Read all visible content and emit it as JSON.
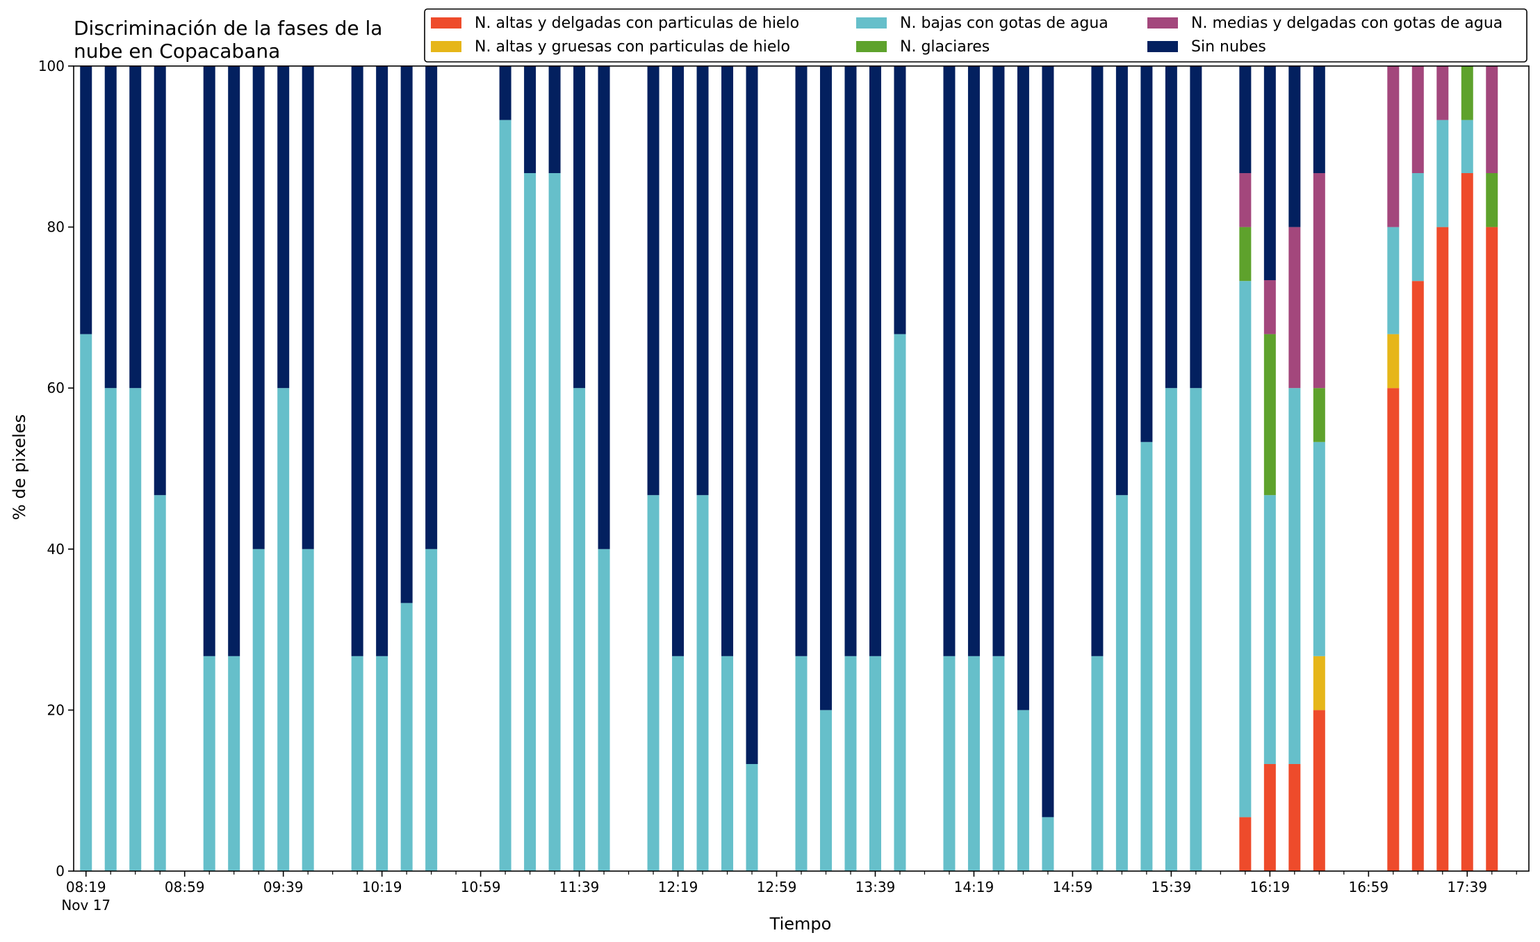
{
  "chart_data": {
    "type": "bar",
    "stacked": true,
    "title_lines": [
      "Discriminación de la fases de la",
      "nube en Copacabana"
    ],
    "xlabel": "Tiempo",
    "ylabel": "% de pixeles",
    "ylim": [
      0,
      100
    ],
    "yticks": [
      0,
      20,
      40,
      60,
      80,
      100
    ],
    "xlim_slots": [
      -0.5,
      58.5
    ],
    "x_tick_labels": [
      {
        "slot": 0,
        "label": "08:19"
      },
      {
        "slot": 4,
        "label": "08:59"
      },
      {
        "slot": 8,
        "label": "09:39"
      },
      {
        "slot": 12,
        "label": "10:19"
      },
      {
        "slot": 16,
        "label": "10:59"
      },
      {
        "slot": 20,
        "label": "11:39"
      },
      {
        "slot": 24,
        "label": "12:19"
      },
      {
        "slot": 28,
        "label": "12:59"
      },
      {
        "slot": 32,
        "label": "13:39"
      },
      {
        "slot": 36,
        "label": "14:19"
      },
      {
        "slot": 40,
        "label": "14:59"
      },
      {
        "slot": 44,
        "label": "15:39"
      },
      {
        "slot": 48,
        "label": "16:19"
      },
      {
        "slot": 52,
        "label": "16:59"
      },
      {
        "slot": 56,
        "label": "17:39"
      }
    ],
    "x_date_label": "Nov 17",
    "grid": false,
    "legend_position": "top-right",
    "series_order": [
      "altas_delgadas",
      "altas_gruesas",
      "bajas",
      "glaciares",
      "medias",
      "sin_nubes"
    ],
    "series": [
      {
        "key": "altas_delgadas",
        "name": "N. altas y delgadas con particulas de hielo",
        "color": "#ee4b2b"
      },
      {
        "key": "altas_gruesas",
        "name": "N. altas y gruesas con particulas de hielo",
        "color": "#e6b619"
      },
      {
        "key": "bajas",
        "name": "N. bajas con gotas de agua",
        "color": "#66bfca"
      },
      {
        "key": "glaciares",
        "name": "N. glaciares",
        "color": "#5ea22c"
      },
      {
        "key": "medias",
        "name": "N. medias y delgadas con gotas de agua",
        "color": "#a3477c"
      },
      {
        "key": "sin_nubes",
        "name": "Sin nubes",
        "color": "#03205f"
      }
    ],
    "bars": [
      {
        "slot": 0,
        "values": [
          0,
          0,
          66.7,
          0,
          0,
          33.3
        ]
      },
      {
        "slot": 1,
        "values": [
          0,
          0,
          60,
          0,
          0,
          40
        ]
      },
      {
        "slot": 2,
        "values": [
          0,
          0,
          60,
          0,
          0,
          40
        ]
      },
      {
        "slot": 3,
        "values": [
          0,
          0,
          46.7,
          0,
          0,
          53.3
        ]
      },
      {
        "slot": 5,
        "values": [
          0,
          0,
          26.7,
          0,
          0,
          73.3
        ]
      },
      {
        "slot": 6,
        "values": [
          0,
          0,
          26.7,
          0,
          0,
          73.3
        ]
      },
      {
        "slot": 7,
        "values": [
          0,
          0,
          40,
          0,
          0,
          60
        ]
      },
      {
        "slot": 8,
        "values": [
          0,
          0,
          60,
          0,
          0,
          40
        ]
      },
      {
        "slot": 9,
        "values": [
          0,
          0,
          40,
          0,
          0,
          60
        ]
      },
      {
        "slot": 11,
        "values": [
          0,
          0,
          26.7,
          0,
          0,
          73.3
        ]
      },
      {
        "slot": 12,
        "values": [
          0,
          0,
          26.7,
          0,
          0,
          73.3
        ]
      },
      {
        "slot": 13,
        "values": [
          0,
          0,
          33.3,
          0,
          0,
          66.7
        ]
      },
      {
        "slot": 14,
        "values": [
          0,
          0,
          40,
          0,
          0,
          60
        ]
      },
      {
        "slot": 17,
        "values": [
          0,
          0,
          93.3,
          0,
          0,
          6.7
        ]
      },
      {
        "slot": 18,
        "values": [
          0,
          0,
          86.7,
          0,
          0,
          13.3
        ]
      },
      {
        "slot": 19,
        "values": [
          0,
          0,
          86.7,
          0,
          0,
          13.3
        ]
      },
      {
        "slot": 20,
        "values": [
          0,
          0,
          60,
          0,
          0,
          40
        ]
      },
      {
        "slot": 21,
        "values": [
          0,
          0,
          40,
          0,
          0,
          60
        ]
      },
      {
        "slot": 23,
        "values": [
          0,
          0,
          46.7,
          0,
          0,
          53.3
        ]
      },
      {
        "slot": 24,
        "values": [
          0,
          0,
          26.7,
          0,
          0,
          73.3
        ]
      },
      {
        "slot": 25,
        "values": [
          0,
          0,
          46.7,
          0,
          0,
          53.3
        ]
      },
      {
        "slot": 26,
        "values": [
          0,
          0,
          26.7,
          0,
          0,
          73.3
        ]
      },
      {
        "slot": 27,
        "values": [
          0,
          0,
          13.3,
          0,
          0,
          86.7
        ]
      },
      {
        "slot": 29,
        "values": [
          0,
          0,
          26.7,
          0,
          0,
          73.3
        ]
      },
      {
        "slot": 30,
        "values": [
          0,
          0,
          20,
          0,
          0,
          80
        ]
      },
      {
        "slot": 31,
        "values": [
          0,
          0,
          26.7,
          0,
          0,
          73.3
        ]
      },
      {
        "slot": 32,
        "values": [
          0,
          0,
          26.7,
          0,
          0,
          73.3
        ]
      },
      {
        "slot": 33,
        "values": [
          0,
          0,
          66.7,
          0,
          0,
          33.3
        ]
      },
      {
        "slot": 35,
        "values": [
          0,
          0,
          26.7,
          0,
          0,
          73.3
        ]
      },
      {
        "slot": 36,
        "values": [
          0,
          0,
          26.7,
          0,
          0,
          73.3
        ]
      },
      {
        "slot": 37,
        "values": [
          0,
          0,
          26.7,
          0,
          0,
          73.3
        ]
      },
      {
        "slot": 38,
        "values": [
          0,
          0,
          20,
          0,
          0,
          80
        ]
      },
      {
        "slot": 39,
        "values": [
          0,
          0,
          6.7,
          0,
          0,
          93.3
        ]
      },
      {
        "slot": 41,
        "values": [
          0,
          0,
          26.7,
          0,
          0,
          73.3
        ]
      },
      {
        "slot": 42,
        "values": [
          0,
          0,
          46.7,
          0,
          0,
          53.3
        ]
      },
      {
        "slot": 43,
        "values": [
          0,
          0,
          53.3,
          0,
          0,
          46.7
        ]
      },
      {
        "slot": 44,
        "values": [
          0,
          0,
          60,
          0,
          0,
          40
        ]
      },
      {
        "slot": 45,
        "values": [
          0,
          0,
          60,
          0,
          0,
          40
        ]
      },
      {
        "slot": 47,
        "values": [
          6.7,
          0,
          66.6,
          6.7,
          6.7,
          13.3
        ]
      },
      {
        "slot": 48,
        "values": [
          13.3,
          0,
          33.4,
          20,
          6.7,
          26.6
        ]
      },
      {
        "slot": 49,
        "values": [
          13.3,
          0,
          46.7,
          0,
          20,
          20
        ]
      },
      {
        "slot": 50,
        "values": [
          20,
          6.7,
          26.6,
          6.7,
          26.7,
          13.3
        ]
      },
      {
        "slot": 53,
        "values": [
          60,
          6.7,
          13.3,
          0,
          20,
          0
        ]
      },
      {
        "slot": 54,
        "values": [
          73.3,
          0,
          13.4,
          0,
          13.3,
          0
        ]
      },
      {
        "slot": 55,
        "values": [
          80,
          0,
          13.3,
          0,
          6.7,
          0
        ]
      },
      {
        "slot": 56,
        "values": [
          86.7,
          0,
          6.6,
          6.7,
          0,
          0
        ]
      },
      {
        "slot": 57,
        "values": [
          80,
          0,
          0,
          6.7,
          13.3,
          0
        ]
      }
    ]
  }
}
